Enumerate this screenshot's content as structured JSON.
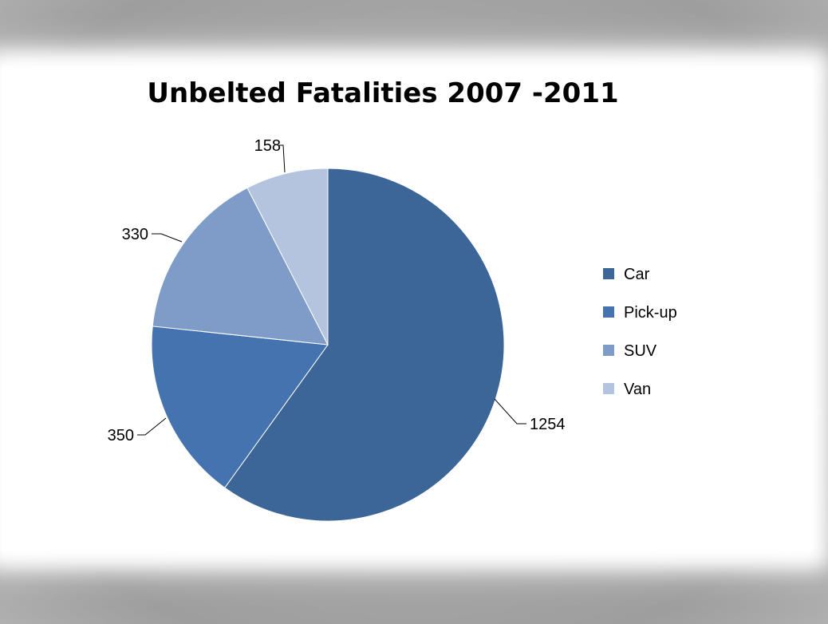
{
  "chart_data": {
    "type": "pie",
    "title": "Unbelted Fatalities 2007 -2011",
    "categories": [
      "Car",
      "Pick-up",
      "SUV",
      "Van"
    ],
    "values": [
      1254,
      350,
      330,
      158
    ],
    "colors": [
      "#3d6698",
      "#4573b0",
      "#7f9cc8",
      "#b5c4de"
    ],
    "legend_position": "right",
    "data_labels": true,
    "start_angle": "12 o'clock",
    "direction": "clockwise"
  }
}
